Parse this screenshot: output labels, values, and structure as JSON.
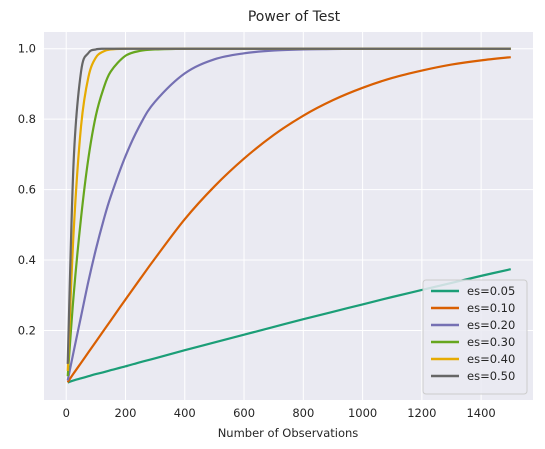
{
  "chart_data": {
    "type": "line",
    "title": "Power of Test",
    "xlabel": "Number of Observations",
    "ylabel": "",
    "xlim": [
      -75,
      1575
    ],
    "ylim": [
      0.0025,
      1.0475
    ],
    "xticks": [
      0,
      200,
      400,
      600,
      800,
      1000,
      1200,
      1400
    ],
    "xtick_labels": [
      "0",
      "200",
      "400",
      "600",
      "800",
      "1000",
      "1200",
      "1400"
    ],
    "yticks": [
      0.2,
      0.4,
      0.6,
      0.8,
      1.0
    ],
    "ytick_labels": [
      "0.2",
      "0.4",
      "0.6",
      "0.8",
      "1.0"
    ],
    "grid": true,
    "legend_position": "lower-right",
    "x": [
      5,
      25,
      50,
      75,
      100,
      125,
      150,
      200,
      250,
      300,
      400,
      500,
      600,
      700,
      800,
      900,
      1000,
      1100,
      1200,
      1300,
      1400,
      1500
    ],
    "series": [
      {
        "name": "es=0.05",
        "color": "#1b9e77",
        "values": [
          0.052,
          0.058,
          0.064,
          0.07,
          0.076,
          0.081,
          0.087,
          0.098,
          0.11,
          0.121,
          0.144,
          0.166,
          0.188,
          0.21,
          0.232,
          0.253,
          0.274,
          0.295,
          0.315,
          0.335,
          0.355,
          0.374
        ]
      },
      {
        "name": "es=0.10",
        "color": "#d95f02",
        "values": [
          0.053,
          0.078,
          0.108,
          0.138,
          0.168,
          0.198,
          0.228,
          0.288,
          0.347,
          0.405,
          0.516,
          0.609,
          0.688,
          0.755,
          0.81,
          0.854,
          0.889,
          0.917,
          0.938,
          0.955,
          0.967,
          0.976
        ]
      },
      {
        "name": "es=0.20",
        "color": "#7570b3",
        "values": [
          0.058,
          0.14,
          0.24,
          0.34,
          0.43,
          0.51,
          0.58,
          0.695,
          0.785,
          0.85,
          0.93,
          0.97,
          0.987,
          0.995,
          0.998,
          0.999,
          1.0,
          1.0,
          1.0,
          1.0,
          1.0,
          1.0
        ]
      },
      {
        "name": "es=0.30",
        "color": "#66a61e",
        "values": [
          0.07,
          0.3,
          0.52,
          0.69,
          0.81,
          0.885,
          0.935,
          0.98,
          0.994,
          0.998,
          1.0,
          1.0,
          1.0,
          1.0,
          1.0,
          1.0,
          1.0,
          1.0,
          1.0,
          1.0,
          1.0,
          1.0
        ]
      },
      {
        "name": "es=0.40",
        "color": "#e6ab02",
        "values": [
          0.085,
          0.48,
          0.78,
          0.92,
          0.975,
          0.992,
          0.998,
          1.0,
          1.0,
          1.0,
          1.0,
          1.0,
          1.0,
          1.0,
          1.0,
          1.0,
          1.0,
          1.0,
          1.0,
          1.0,
          1.0,
          1.0
        ]
      },
      {
        "name": "es=0.50",
        "color": "#666666",
        "values": [
          0.105,
          0.68,
          0.935,
          0.988,
          0.998,
          1.0,
          1.0,
          1.0,
          1.0,
          1.0,
          1.0,
          1.0,
          1.0,
          1.0,
          1.0,
          1.0,
          1.0,
          1.0,
          1.0,
          1.0,
          1.0,
          1.0
        ]
      }
    ]
  },
  "colors": {
    "plot_background": "#eaeaf2",
    "grid": "#ffffff",
    "text": "#262626"
  }
}
